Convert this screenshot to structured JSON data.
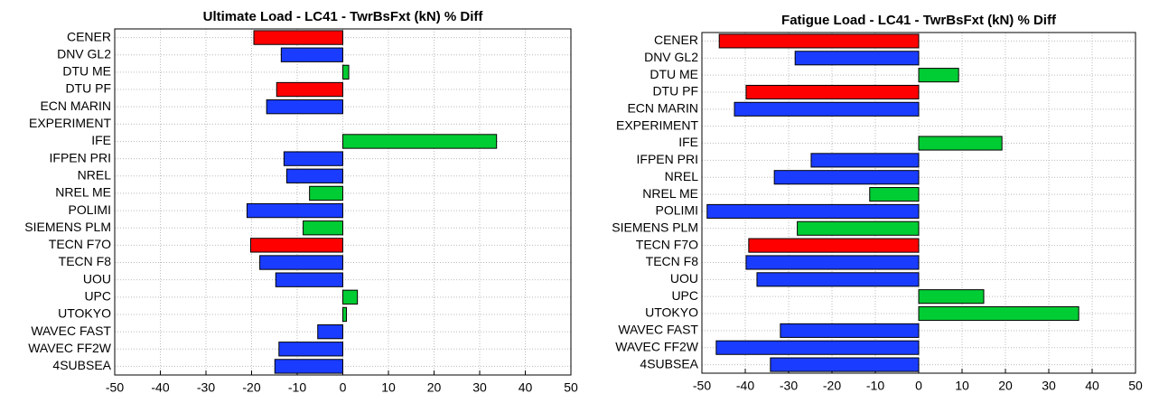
{
  "chart_data": [
    {
      "type": "barh",
      "title": "Ultimate Load - LC41 - TwrBsFxt (kN) % Diff",
      "categories": [
        "CENER",
        "DNV GL2",
        "DTU ME",
        "DTU PF",
        "ECN MARIN",
        "EXPERIMENT",
        "IFE",
        "IFPEN PRI",
        "NREL",
        "NREL ME",
        "POLIMI",
        "SIEMENS PLM",
        "TECN F7O",
        "TECN F8",
        "UOU",
        "UPC",
        "UTOKYO",
        "WAVEC FAST",
        "WAVEC FF2W",
        "4SUBSEA"
      ],
      "values": [
        -19.5,
        -13.5,
        1.3,
        -14.5,
        -16.7,
        0,
        33.7,
        -12.9,
        -12.3,
        -7.3,
        -21,
        -8.7,
        -20.2,
        -18.2,
        -14.7,
        3.2,
        0.8,
        -5.5,
        -14,
        -14.9
      ],
      "colors": [
        "#ff0000",
        "#1a3cff",
        "#00cc33",
        "#ff0000",
        "#1a3cff",
        "#1a3cff",
        "#00cc33",
        "#1a3cff",
        "#1a3cff",
        "#00cc33",
        "#1a3cff",
        "#00cc33",
        "#ff0000",
        "#1a3cff",
        "#1a3cff",
        "#00cc33",
        "#00cc33",
        "#1a3cff",
        "#1a3cff",
        "#1a3cff"
      ],
      "xlim": [
        -50,
        50
      ],
      "xticks": [
        -50,
        -40,
        -30,
        -20,
        -10,
        0,
        10,
        20,
        30,
        40,
        50
      ],
      "grid": true
    },
    {
      "type": "barh",
      "title": "Fatigue Load - LC41 - TwrBsFxt (kN) % Diff",
      "categories": [
        "CENER",
        "DNV GL2",
        "DTU ME",
        "DTU PF",
        "ECN MARIN",
        "EXPERIMENT",
        "IFE",
        "IFPEN PRI",
        "NREL",
        "NREL ME",
        "POLIMI",
        "SIEMENS PLM",
        "TECN F7O",
        "TECN F8",
        "UOU",
        "UPC",
        "UTOKYO",
        "WAVEC FAST",
        "WAVEC FF2W",
        "4SUBSEA"
      ],
      "values": [
        -46,
        -28.5,
        9.2,
        -39.8,
        -42.5,
        0,
        19.2,
        -24.8,
        -33.3,
        -11.3,
        -48.8,
        -28,
        -39.2,
        -39.8,
        -37.3,
        15,
        36.9,
        -31.9,
        -46.7,
        -34.2
      ],
      "colors": [
        "#ff0000",
        "#1a3cff",
        "#00cc33",
        "#ff0000",
        "#1a3cff",
        "#1a3cff",
        "#00cc33",
        "#1a3cff",
        "#1a3cff",
        "#00cc33",
        "#1a3cff",
        "#00cc33",
        "#ff0000",
        "#1a3cff",
        "#1a3cff",
        "#00cc33",
        "#00cc33",
        "#1a3cff",
        "#1a3cff",
        "#1a3cff"
      ],
      "xlim": [
        -50,
        50
      ],
      "xticks": [
        -50,
        -40,
        -30,
        -20,
        -10,
        0,
        10,
        20,
        30,
        40,
        50
      ],
      "grid": true
    }
  ]
}
